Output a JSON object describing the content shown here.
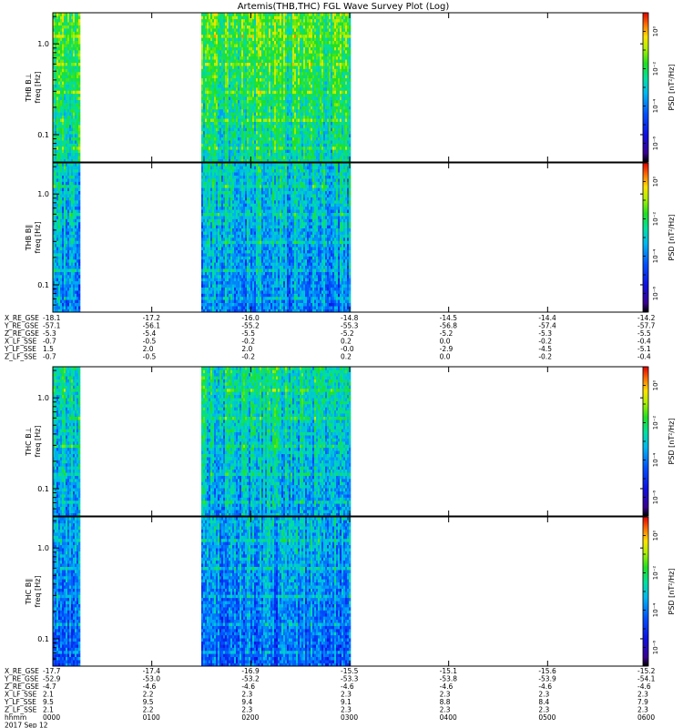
{
  "title": "Artemis(THB,THC) FGL Wave Survey Plot (Log)",
  "chart_data": {
    "type": "heatmap",
    "title": "Artemis(THB,THC) FGL Wave Survey Plot (Log)",
    "x_range_hours": [
      0,
      6
    ],
    "data_gaps_hours": [
      [
        0.27,
        1.5
      ],
      [
        3.0,
        6.0
      ]
    ],
    "panels": [
      {
        "id": "thb-perp",
        "probe": "THB",
        "component_label": "B⊥",
        "ylabel_text": "freq [Hz]",
        "yscale": "log",
        "ylim_hz": [
          0.05,
          2.2
        ],
        "yticks": [
          {
            "value": 0.1,
            "label": "0.1"
          },
          {
            "value": 1.0,
            "label": "1.0"
          }
        ],
        "colorbar_label": "PSD [nT²/Hz]",
        "colorbar_ticks": [
          {
            "exp": 0,
            "label": "10⁰"
          },
          {
            "exp": -2,
            "label": "10⁻²"
          },
          {
            "exp": -4,
            "label": "10⁻⁴"
          },
          {
            "exp": -6,
            "label": "10⁻⁶"
          }
        ],
        "colorbar_range_exp": [
          -7,
          1
        ],
        "intensity": 0.66
      },
      {
        "id": "thb-par",
        "probe": "THB",
        "component_label": "B∥",
        "ylabel_text": "freq [Hz]",
        "yscale": "log",
        "ylim_hz": [
          0.05,
          2.2
        ],
        "yticks": [
          {
            "value": 0.1,
            "label": "0.1"
          },
          {
            "value": 1.0,
            "label": "1.0"
          }
        ],
        "colorbar_label": "PSD [nT²/Hz]",
        "colorbar_ticks": [
          {
            "exp": 0,
            "label": "10⁰"
          },
          {
            "exp": -2,
            "label": "10⁻²"
          },
          {
            "exp": -4,
            "label": "10⁻⁴"
          },
          {
            "exp": -6,
            "label": "10⁻⁶"
          }
        ],
        "colorbar_range_exp": [
          -7,
          1
        ],
        "intensity": 0.5
      },
      {
        "id": "thc-perp",
        "probe": "THC",
        "component_label": "B⊥",
        "ylabel_text": "freq [Hz]",
        "yscale": "log",
        "ylim_hz": [
          0.05,
          2.2
        ],
        "yticks": [
          {
            "value": 0.1,
            "label": "0.1"
          },
          {
            "value": 1.0,
            "label": "1.0"
          }
        ],
        "colorbar_label": "PSD [nT²/Hz]",
        "colorbar_ticks": [
          {
            "exp": 0,
            "label": "10⁰"
          },
          {
            "exp": -2,
            "label": "10⁻²"
          },
          {
            "exp": -4,
            "label": "10⁻⁴"
          },
          {
            "exp": -6,
            "label": "10⁻⁶"
          }
        ],
        "colorbar_range_exp": [
          -7,
          1
        ],
        "intensity": 0.55
      },
      {
        "id": "thc-par",
        "probe": "THC",
        "component_label": "B∥",
        "ylabel_text": "freq [Hz]",
        "yscale": "log",
        "ylim_hz": [
          0.05,
          2.2
        ],
        "yticks": [
          {
            "value": 0.1,
            "label": "0.1"
          },
          {
            "value": 1.0,
            "label": "1.0"
          }
        ],
        "colorbar_label": "PSD [nT²/Hz]",
        "colorbar_ticks": [
          {
            "exp": 0,
            "label": "10⁰"
          },
          {
            "exp": -2,
            "label": "10⁻²"
          },
          {
            "exp": -4,
            "label": "10⁻⁴"
          },
          {
            "exp": -6,
            "label": "10⁻⁶"
          }
        ],
        "colorbar_range_exp": [
          -7,
          1
        ],
        "intensity": 0.45
      }
    ],
    "ephemeris_blocks": [
      {
        "probe": "THB",
        "rows": [
          {
            "label": "X_RE_GSE",
            "values": [
              "-18.1",
              "-17.2",
              "-16.0",
              "-14.8",
              "-14.5",
              "-14.4",
              "-14.2"
            ]
          },
          {
            "label": "Y_RE_GSE",
            "values": [
              "-57.1",
              "-56.1",
              "-55.2",
              "-55.3",
              "-56.8",
              "-57.4",
              "-57.7"
            ]
          },
          {
            "label": "Z_RE_GSE",
            "values": [
              "-5.3",
              "-5.4",
              "-5.5",
              "-5.2",
              "-5.2",
              "-5.3",
              "-5.5"
            ]
          },
          {
            "label": "X_LF_SSE",
            "values": [
              "-0.7",
              "-0.5",
              "-0.2",
              "0.2",
              "0.0",
              "-0.2",
              "-0.4"
            ]
          },
          {
            "label": "Y_LF_SSE",
            "values": [
              "1.5",
              "2.0",
              "2.0",
              "-0.0",
              "-2.9",
              "-4.5",
              "-5.1"
            ]
          },
          {
            "label": "Z_LF_SSE",
            "values": [
              "-0.7",
              "-0.5",
              "-0.2",
              "0.2",
              "0.0",
              "-0.2",
              "-0.4"
            ]
          }
        ]
      },
      {
        "probe": "THC",
        "rows": [
          {
            "label": "X_RE_GSE",
            "values": [
              "-17.7",
              "-17.4",
              "-16.9",
              "-15.5",
              "-15.1",
              "-15.6",
              "-15.2"
            ]
          },
          {
            "label": "Y_RE_GSE",
            "values": [
              "-52.9",
              "-53.0",
              "-53.2",
              "-53.3",
              "-53.8",
              "-53.9",
              "-54.1"
            ]
          },
          {
            "label": "Z_RE_GSE",
            "values": [
              "-4.7",
              "-4.6",
              "-4.6",
              "-4.6",
              "-4.6",
              "-4.6",
              "-4.6"
            ]
          },
          {
            "label": "X_LF_SSE",
            "values": [
              "2.1",
              "2.2",
              "2.3",
              "2.3",
              "2.3",
              "2.3",
              "2.3"
            ]
          },
          {
            "label": "Y_LF_SSE",
            "values": [
              "9.5",
              "9.5",
              "9.4",
              "9.1",
              "8.8",
              "8.4",
              "7.9"
            ]
          },
          {
            "label": "Z_LF_SSE",
            "values": [
              "2.1",
              "2.2",
              "2.3",
              "2.3",
              "2.3",
              "2.3",
              "2.3"
            ]
          }
        ]
      }
    ],
    "time_axis": {
      "label": "hhmm",
      "ticks": [
        "0000",
        "0100",
        "0200",
        "0300",
        "0400",
        "0500",
        "0600"
      ]
    },
    "date_label": "2017 Sep 12"
  }
}
